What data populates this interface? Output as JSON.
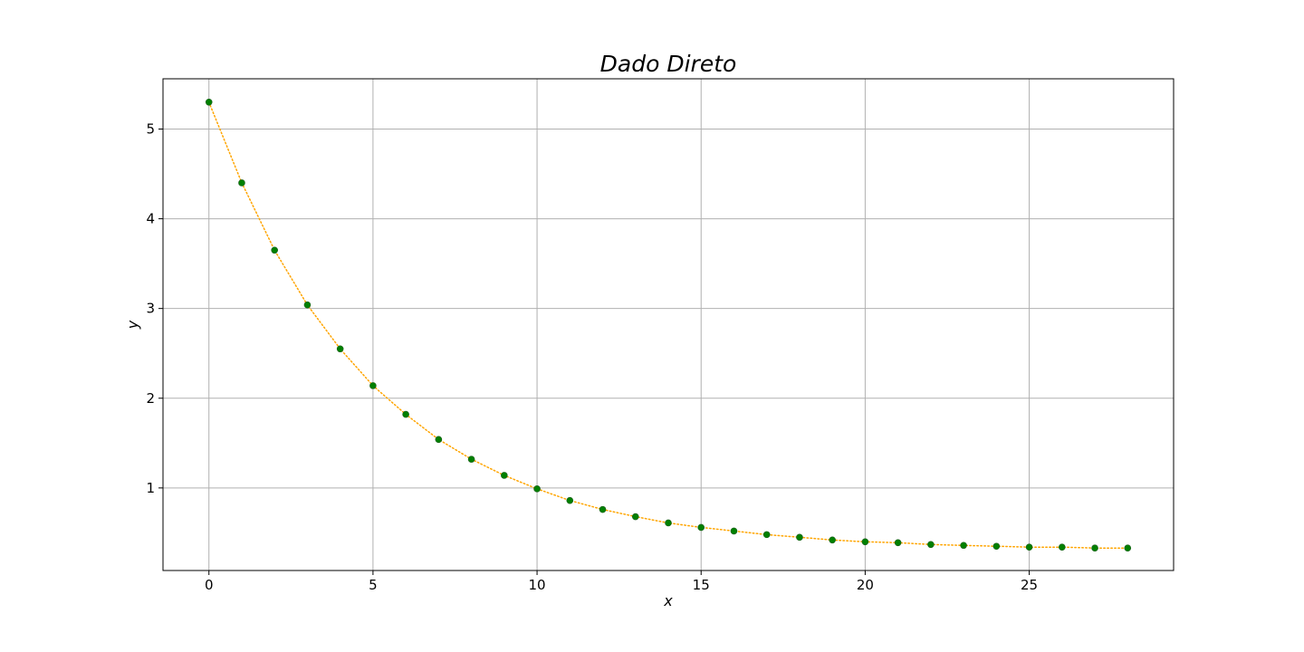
{
  "chart_data": {
    "type": "scatter",
    "title": "Dado Direto",
    "xlabel": "x",
    "ylabel": "y",
    "xlim": [
      -1.4,
      29.4
    ],
    "ylim": [
      0.08,
      5.56
    ],
    "xticks": [
      0,
      5,
      10,
      15,
      20,
      25
    ],
    "yticks": [
      1,
      2,
      3,
      4,
      5
    ],
    "grid": true,
    "series": [
      {
        "marker_color": "#008000",
        "line_color": "#FFA500",
        "line_style": "dotted",
        "x": [
          0,
          1,
          2,
          3,
          4,
          5,
          6,
          7,
          8,
          9,
          10,
          11,
          12,
          13,
          14,
          15,
          16,
          17,
          18,
          19,
          20,
          21,
          22,
          23,
          24,
          25,
          26,
          27,
          28
        ],
        "y": [
          5.3,
          4.4,
          3.65,
          3.04,
          2.55,
          2.14,
          1.82,
          1.54,
          1.32,
          1.14,
          0.99,
          0.86,
          0.76,
          0.68,
          0.61,
          0.56,
          0.52,
          0.48,
          0.45,
          0.42,
          0.4,
          0.39,
          0.37,
          0.36,
          0.35,
          0.34,
          0.34,
          0.33,
          0.33
        ]
      }
    ]
  }
}
